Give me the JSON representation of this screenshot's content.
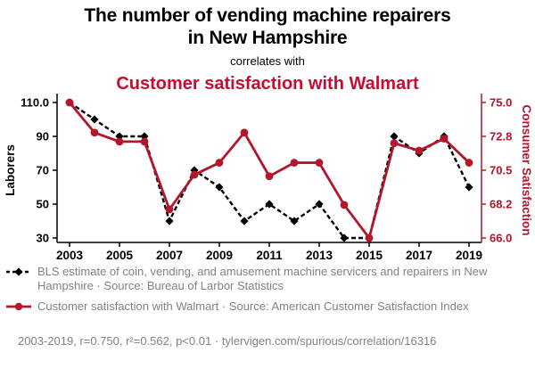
{
  "header": {
    "title": "The number of vending machine repairers in New Hampshire",
    "connector": "correlates with",
    "subtitle": "Customer satisfaction with Walmart"
  },
  "colors": {
    "title_red": "#c60c30",
    "series_red": "#b5152b",
    "text_gray": "#7f8285"
  },
  "chart_data": {
    "type": "line",
    "x": [
      2003,
      2004,
      2005,
      2006,
      2007,
      2008,
      2009,
      2010,
      2011,
      2012,
      2013,
      2014,
      2015,
      2016,
      2017,
      2018,
      2019
    ],
    "x_tick_labels": [
      "2003",
      "2005",
      "2007",
      "2009",
      "2011",
      "2013",
      "2015",
      "2017",
      "2019"
    ],
    "left_axis": {
      "label": "Laborers",
      "tick_labels": [
        "110.0",
        "90",
        "70",
        "50",
        "30"
      ],
      "tick_values": [
        110,
        90,
        70,
        50,
        30
      ],
      "range": [
        30,
        110
      ]
    },
    "right_axis": {
      "label": "Consumer Satisfaction",
      "tick_labels": [
        "75.0",
        "72.8",
        "70.5",
        "68.2",
        "66.0"
      ],
      "tick_values": [
        75,
        72.75,
        70.5,
        68.25,
        66
      ],
      "range": [
        66,
        75
      ]
    },
    "series": [
      {
        "name": "BLS estimate of coin, vending, and amusement machine servicers and repairers in New Hampshire",
        "axis": "left",
        "color": "#000000",
        "line_style": "dashed",
        "marker": "diamond",
        "values": [
          110,
          100,
          90,
          90,
          40,
          70,
          60,
          40,
          50,
          40,
          50,
          30,
          30,
          90,
          80,
          90,
          60
        ]
      },
      {
        "name": "Customer satisfaction with Walmart",
        "axis": "right",
        "color": "#b5152b",
        "line_style": "solid",
        "marker": "circle",
        "values": [
          75.0,
          73.0,
          72.4,
          72.4,
          67.9,
          70.2,
          71.0,
          73.0,
          70.1,
          71.0,
          71.0,
          68.2,
          66.0,
          72.3,
          71.8,
          72.6,
          71.0
        ]
      }
    ]
  },
  "legend": [
    {
      "marker": "black-dashed-diamond",
      "text": "BLS estimate of coin, vending, and amusement machine servicers and repairers in New Hampshire · Source: Bureau of Larbor Statistics"
    },
    {
      "marker": "red-line-circle",
      "text": "Customer satisfaction with Walmart · Source: American Customer Satisfaction Index"
    }
  ],
  "footer": "2003-2019, r=0.750, r²=0.562, p<0.01 · tylervigen.com/spurious/correlation/16316"
}
